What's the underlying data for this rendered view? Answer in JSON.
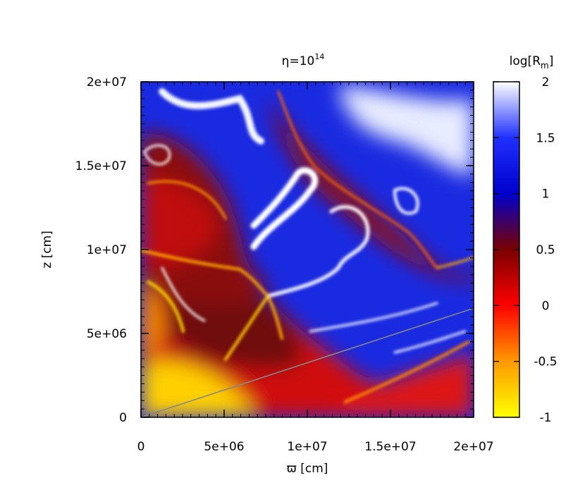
{
  "chart_data": {
    "type": "heatmap",
    "title_base": "η=10",
    "title_exp": "14",
    "xlabel": "ϖ [cm]",
    "ylabel": "z [cm]",
    "xlim": [
      0,
      20000000
    ],
    "ylim": [
      0,
      20000000
    ],
    "x_ticks": [
      0,
      5000000,
      10000000,
      15000000,
      20000000
    ],
    "x_tick_labels": [
      "0",
      "5e+06",
      "1e+07",
      "1.5e+07",
      "2e+07"
    ],
    "y_ticks": [
      0,
      5000000,
      10000000,
      15000000,
      20000000
    ],
    "y_tick_labels": [
      "0",
      "5e+06",
      "1e+07",
      "1.5e+07",
      "2e+07"
    ],
    "colorbar": {
      "label_base": "log[R",
      "label_sub": "m",
      "label_close": "]",
      "range": [
        -1,
        2
      ],
      "ticks": [
        -1,
        -0.5,
        0,
        0.5,
        1,
        1.5,
        2
      ],
      "tick_labels": [
        "-1",
        "-0.5",
        "0",
        "0.5",
        "1",
        "1.5",
        "2"
      ],
      "stops": [
        {
          "value": -1,
          "color": "#ffff00"
        },
        {
          "value": -0.5,
          "color": "#ff9900"
        },
        {
          "value": 0,
          "color": "#ff0000"
        },
        {
          "value": 0.5,
          "color": "#7a0000"
        },
        {
          "value": 1,
          "color": "#0000cc"
        },
        {
          "value": 1.5,
          "color": "#2030ff"
        },
        {
          "value": 2,
          "color": "#ffffff"
        }
      ]
    },
    "overlay_line": {
      "color": "#888888",
      "points": [
        [
          0,
          0
        ],
        [
          20000000,
          6500000
        ]
      ]
    }
  }
}
